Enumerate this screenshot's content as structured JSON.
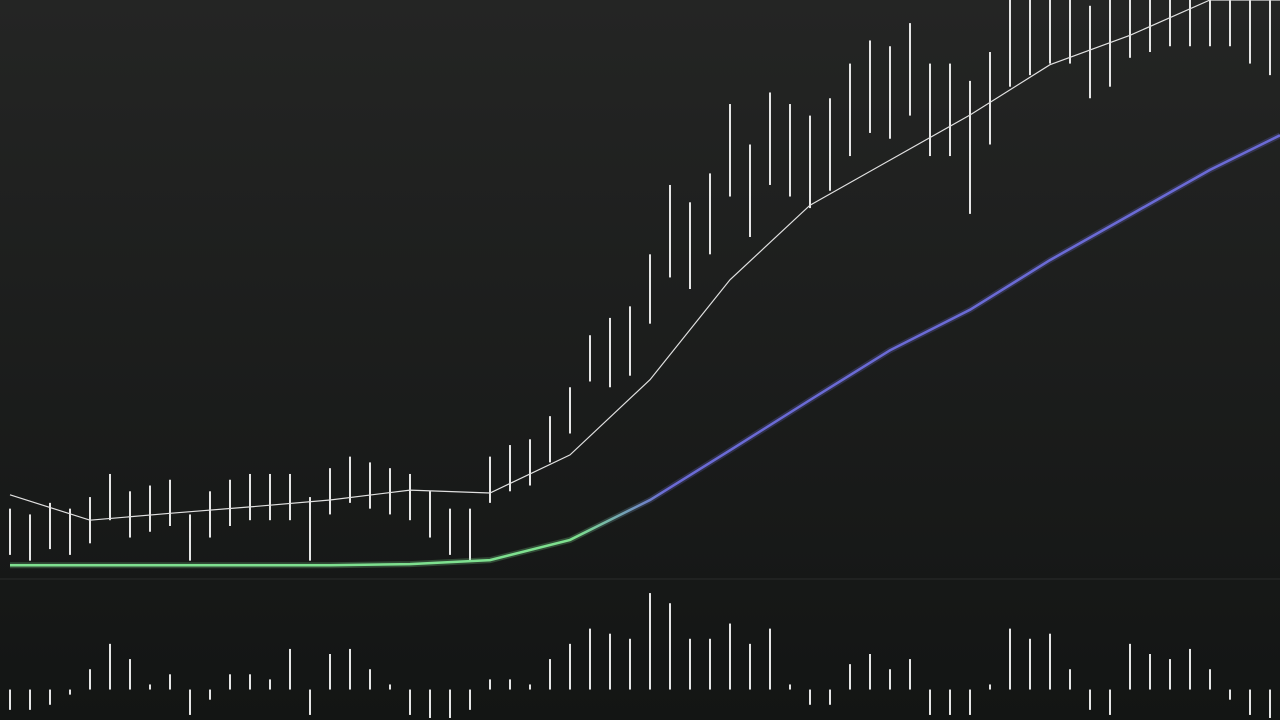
{
  "chart_data": [
    {
      "type": "ohlc",
      "xlim": [
        -0.5,
        63.5
      ],
      "ylim": [
        0,
        100
      ],
      "color": "#e6e6e6",
      "x": [
        0,
        1,
        2,
        3,
        4,
        5,
        6,
        7,
        8,
        9,
        10,
        11,
        12,
        13,
        14,
        15,
        16,
        17,
        18,
        19,
        20,
        21,
        22,
        23,
        24,
        25,
        26,
        27,
        28,
        29,
        30,
        31,
        32,
        33,
        34,
        35,
        36,
        37,
        38,
        39,
        40,
        41,
        42,
        43,
        44,
        45,
        46,
        47,
        48,
        49,
        50,
        51,
        52,
        53,
        54,
        55,
        56,
        57,
        58,
        59,
        60,
        61,
        62,
        63
      ],
      "low": [
        4,
        3,
        5,
        4,
        6,
        10,
        7,
        8,
        9,
        3,
        7,
        9,
        10,
        10,
        10,
        3,
        11,
        13,
        12,
        11,
        10,
        7,
        4,
        3,
        13,
        15,
        16,
        20,
        25,
        34,
        33,
        35,
        44,
        52,
        50,
        56,
        66,
        59,
        68,
        66,
        64,
        67,
        73,
        77,
        76,
        80,
        73,
        73,
        63,
        75,
        85,
        87,
        89,
        89,
        83,
        85,
        90,
        91,
        92,
        92,
        92,
        92,
        89,
        87
      ],
      "high": [
        12,
        11,
        13,
        12,
        14,
        18,
        15,
        16,
        17,
        11,
        15,
        17,
        18,
        18,
        18,
        14,
        19,
        21,
        20,
        19,
        18,
        15,
        12,
        12,
        21,
        23,
        24,
        28,
        33,
        42,
        45,
        47,
        56,
        68,
        65,
        70,
        82,
        75,
        84,
        82,
        80,
        83,
        89,
        93,
        92,
        96,
        89,
        89,
        86,
        91,
        100,
        100,
        100,
        100,
        99,
        100,
        100,
        100,
        100,
        100,
        100,
        100,
        100,
        100
      ],
      "series": [
        {
          "color": "#e0e0e0",
          "x": [
            0,
            4,
            8,
            12,
            16,
            20,
            24,
            28,
            32,
            36,
            40,
            44,
            48,
            52,
            56,
            60,
            63.5
          ],
          "values": [
            14.4,
            10,
            11.2,
            12.3,
            13.5,
            15.2,
            14.7,
            21.3,
            34.3,
            51.6,
            64.5,
            72.3,
            80.1,
            88.8,
            93.9,
            100,
            100
          ]
        },
        {
          "color": [
            "#7ee08f",
            "#6b6bd6"
          ],
          "x": [
            0,
            4,
            8,
            12,
            16,
            20,
            24,
            28,
            32,
            36,
            40,
            44,
            48,
            52,
            56,
            60,
            63.5
          ],
          "values": [
            2.2,
            2.2,
            2.2,
            2.2,
            2.2,
            2.4,
            3.1,
            6.6,
            13.5,
            22.1,
            30.8,
            39.4,
            46.4,
            55,
            62.8,
            70.6,
            76.6
          ]
        }
      ]
    },
    {
      "type": "bar",
      "xlim": [
        -0.5,
        63.5
      ],
      "ylim": [
        -30,
        100
      ],
      "color": "#e6e6e6",
      "values": [
        -20,
        -20,
        -15,
        -5,
        20,
        45,
        30,
        5,
        15,
        -25,
        -10,
        15,
        15,
        10,
        40,
        -25,
        35,
        40,
        20,
        5,
        -25,
        -28,
        -28,
        -20,
        10,
        10,
        5,
        30,
        45,
        60,
        55,
        50,
        95,
        85,
        50,
        50,
        65,
        45,
        60,
        5,
        -15,
        -15,
        25,
        35,
        20,
        30,
        -25,
        -25,
        -25,
        5,
        60,
        50,
        55,
        20,
        -20,
        -25,
        45,
        35,
        30,
        40,
        20,
        -10,
        -25,
        -28
      ]
    }
  ]
}
